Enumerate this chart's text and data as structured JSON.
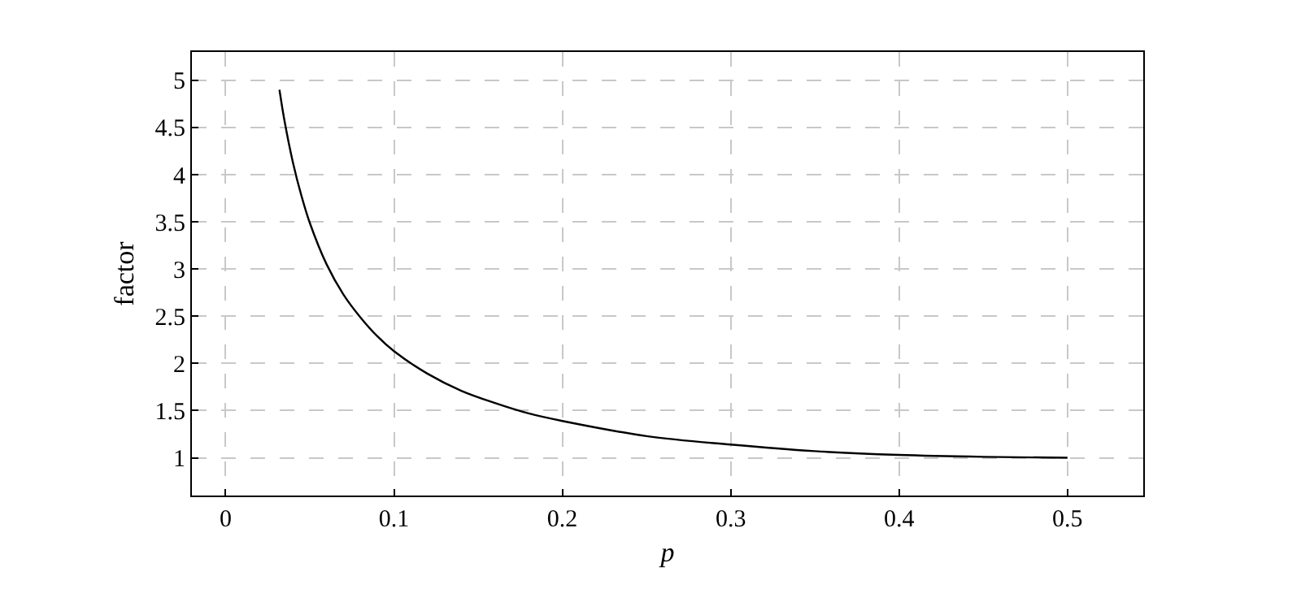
{
  "chart_data": {
    "type": "line",
    "xlabel": "p",
    "ylabel": "factor",
    "x": [
      0.032,
      0.035,
      0.04,
      0.045,
      0.05,
      0.06,
      0.07,
      0.08,
      0.09,
      0.1,
      0.12,
      0.14,
      0.16,
      0.18,
      0.2,
      0.25,
      0.3,
      0.35,
      0.4,
      0.45,
      0.5
    ],
    "series": [
      {
        "color": "#000000",
        "values": [
          4.9,
          4.57,
          4.13,
          3.78,
          3.49,
          3.05,
          2.73,
          2.49,
          2.29,
          2.13,
          1.89,
          1.71,
          1.58,
          1.47,
          1.39,
          1.23,
          1.14,
          1.07,
          1.03,
          1.01,
          1.0
        ]
      }
    ],
    "xlim": [
      -0.02,
      0.545
    ],
    "ylim": [
      0.6,
      5.3
    ],
    "xticks": [
      0,
      0.1,
      0.2,
      0.3,
      0.4,
      0.5
    ],
    "yticks": [
      1,
      1.5,
      2,
      2.5,
      3,
      3.5,
      4,
      4.5,
      5
    ],
    "grid": true,
    "marker": "none",
    "line_style": "solid"
  }
}
